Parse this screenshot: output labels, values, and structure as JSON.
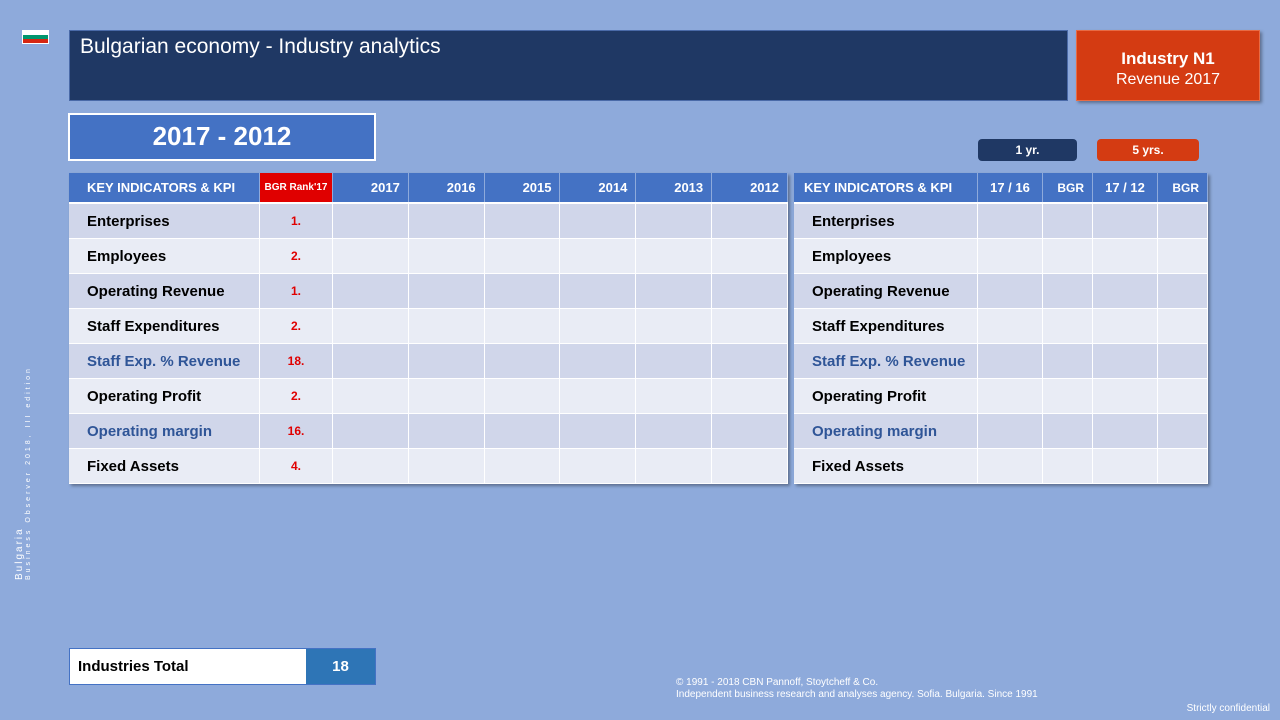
{
  "header": {
    "title": "Bulgarian economy - Industry analytics",
    "industry_label": "Industry  N1",
    "industry_sub": "Revenue 2017"
  },
  "period": "2017 - 2012",
  "pills": {
    "one_year": "1 yr.",
    "five_years": "5 yrs."
  },
  "table_main": {
    "headers": [
      "KEY INDICATORS & KPI",
      "BGR Rank'17",
      "2017",
      "2016",
      "2015",
      "2014",
      "2013",
      "2012"
    ],
    "rows": [
      {
        "name": "Enterprises",
        "rank": "1."
      },
      {
        "name": "Employees",
        "rank": "2."
      },
      {
        "name": "Operating Revenue",
        "rank": "1."
      },
      {
        "name": "Staff Expenditures",
        "rank": "2."
      },
      {
        "name": "Staff Exp. % Revenue",
        "rank": "18."
      },
      {
        "name": "Operating Profit",
        "rank": "2."
      },
      {
        "name": "Operating margin",
        "rank": "16."
      },
      {
        "name": "Fixed Assets",
        "rank": "4."
      }
    ]
  },
  "table_growth": {
    "headers": [
      "KEY INDICATORS & KPI",
      "17 / 16",
      "BGR",
      "17 / 12",
      "BGR"
    ],
    "rows": [
      "Enterprises",
      "Employees",
      "Operating Revenue",
      "Staff Expenditures",
      "Staff Exp. % Revenue",
      "Operating Profit",
      "Operating margin",
      "Fixed Assets"
    ]
  },
  "totals": {
    "label": "Industries Total",
    "value": "18"
  },
  "footer": {
    "line1": "© 1991 - 2018 CBN  Pannoff, Stoytcheff & Co.",
    "line2": "Independent  business research and analyses agency. Sofia. Bulgaria. Since 1991",
    "confidential": "Strictly confidential"
  },
  "side_text": {
    "line1": "Bulgaria",
    "line2": "Business Observer 2018, III edition"
  },
  "colors": {
    "background": "#8eaadb",
    "title_bar": "#1f3864",
    "accent_red": "#d43b12",
    "header_blue": "#4472c4"
  }
}
